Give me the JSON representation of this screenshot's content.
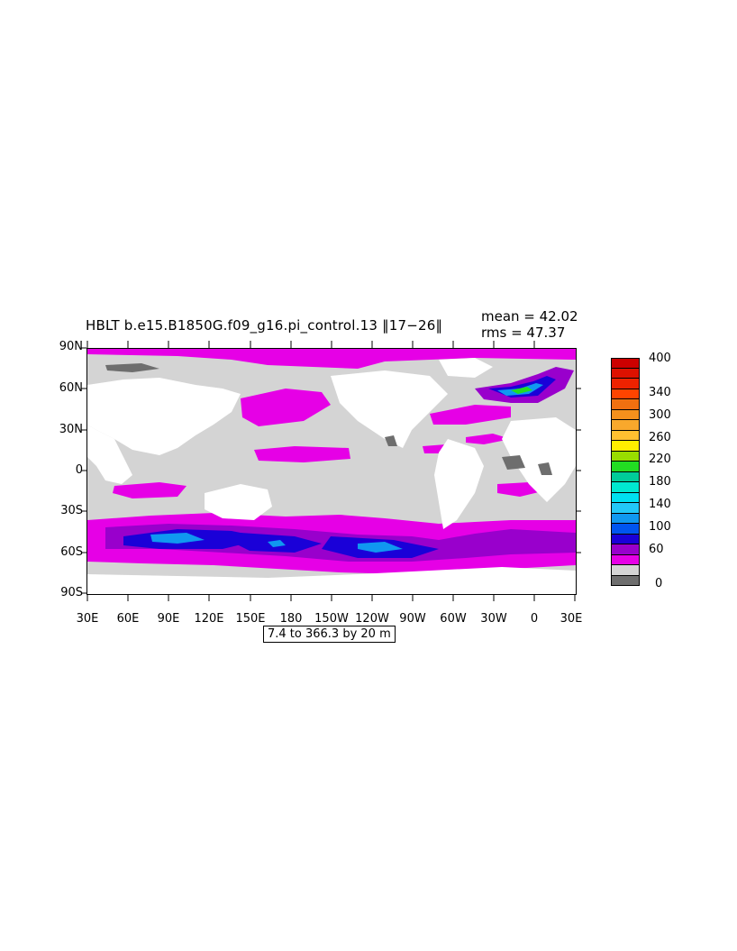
{
  "title": "HBLT b.e15.B1850G.f09_g16.pi_control.13 ‖17−26‖",
  "stats": {
    "mean": "mean = 42.02",
    "rms": "rms = 47.37"
  },
  "lat_labels": [
    "90N",
    "60N",
    "30N",
    "0",
    "30S",
    "60S",
    "90S"
  ],
  "lon_labels": [
    "30E",
    "60E",
    "90E",
    "120E",
    "150E",
    "180",
    "150W",
    "120W",
    "90W",
    "60W",
    "30W",
    "0",
    "30E"
  ],
  "range_label": "7.4 to 366.3 by 20 m",
  "colorbar": {
    "labels": [
      "400",
      "340",
      "300",
      "260",
      "220",
      "180",
      "140",
      "100",
      "60",
      "0"
    ],
    "colors": [
      "#cc0000",
      "#dd1100",
      "#ee2200",
      "#ff4400",
      "#f07010",
      "#f5901c",
      "#f9a82c",
      "#ffc030",
      "#ffee00",
      "#99dd00",
      "#22dd22",
      "#00cc99",
      "#00e8d0",
      "#00e0f0",
      "#22c8f8",
      "#1098f0",
      "#0055f0",
      "#1a00d8",
      "#9900cc",
      "#e600e6",
      "#d4d4d4",
      "#6e6e6e"
    ]
  },
  "map_colors": {
    "land": "#ffffff",
    "low": "#d4d4d4",
    "shallow": "#6e6e6e",
    "mag": "#e600e6",
    "purple": "#9900cc",
    "blue": "#1a00d8",
    "cyan": "#1098f0"
  }
}
